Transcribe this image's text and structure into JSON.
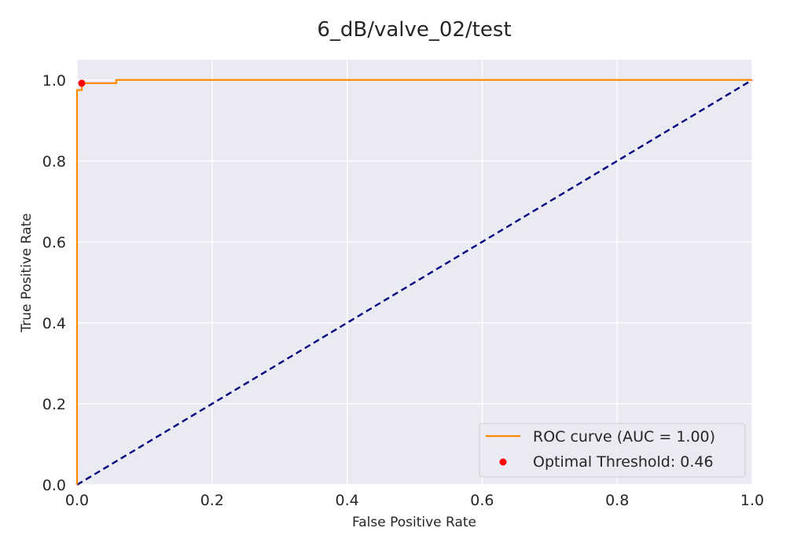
{
  "chart_data": {
    "type": "line",
    "title": "6_dB/valve_02/test",
    "xlabel": "False Positive Rate",
    "ylabel": "True Positive Rate",
    "xlim": [
      0,
      1
    ],
    "ylim": [
      0,
      1.05
    ],
    "grid": true,
    "legend_position": "lower-right",
    "x_ticks": [
      "0.0",
      "0.2",
      "0.4",
      "0.6",
      "0.8",
      "1.0"
    ],
    "y_ticks": [
      "0.0",
      "0.2",
      "0.4",
      "0.6",
      "0.8",
      "1.0"
    ],
    "series": [
      {
        "name": "ROC curve (AUC = 1.00)",
        "kind": "step-line",
        "color": "#ff8c00",
        "x": [
          0.0,
          0.0,
          0.007,
          0.007,
          0.058,
          0.058,
          1.0
        ],
        "y": [
          0.0,
          0.975,
          0.975,
          0.992,
          0.992,
          1.0,
          1.0
        ]
      },
      {
        "name": "",
        "kind": "dashed-line",
        "color": "#000080",
        "x": [
          0.0,
          1.0
        ],
        "y": [
          0.0,
          1.0
        ]
      },
      {
        "name": "Optimal Threshold: 0.46",
        "kind": "point",
        "color": "#ff0000",
        "x": [
          0.007
        ],
        "y": [
          0.992
        ]
      }
    ],
    "colors": {
      "plot_background": "#eaeaf2",
      "grid": "#ffffff"
    }
  }
}
